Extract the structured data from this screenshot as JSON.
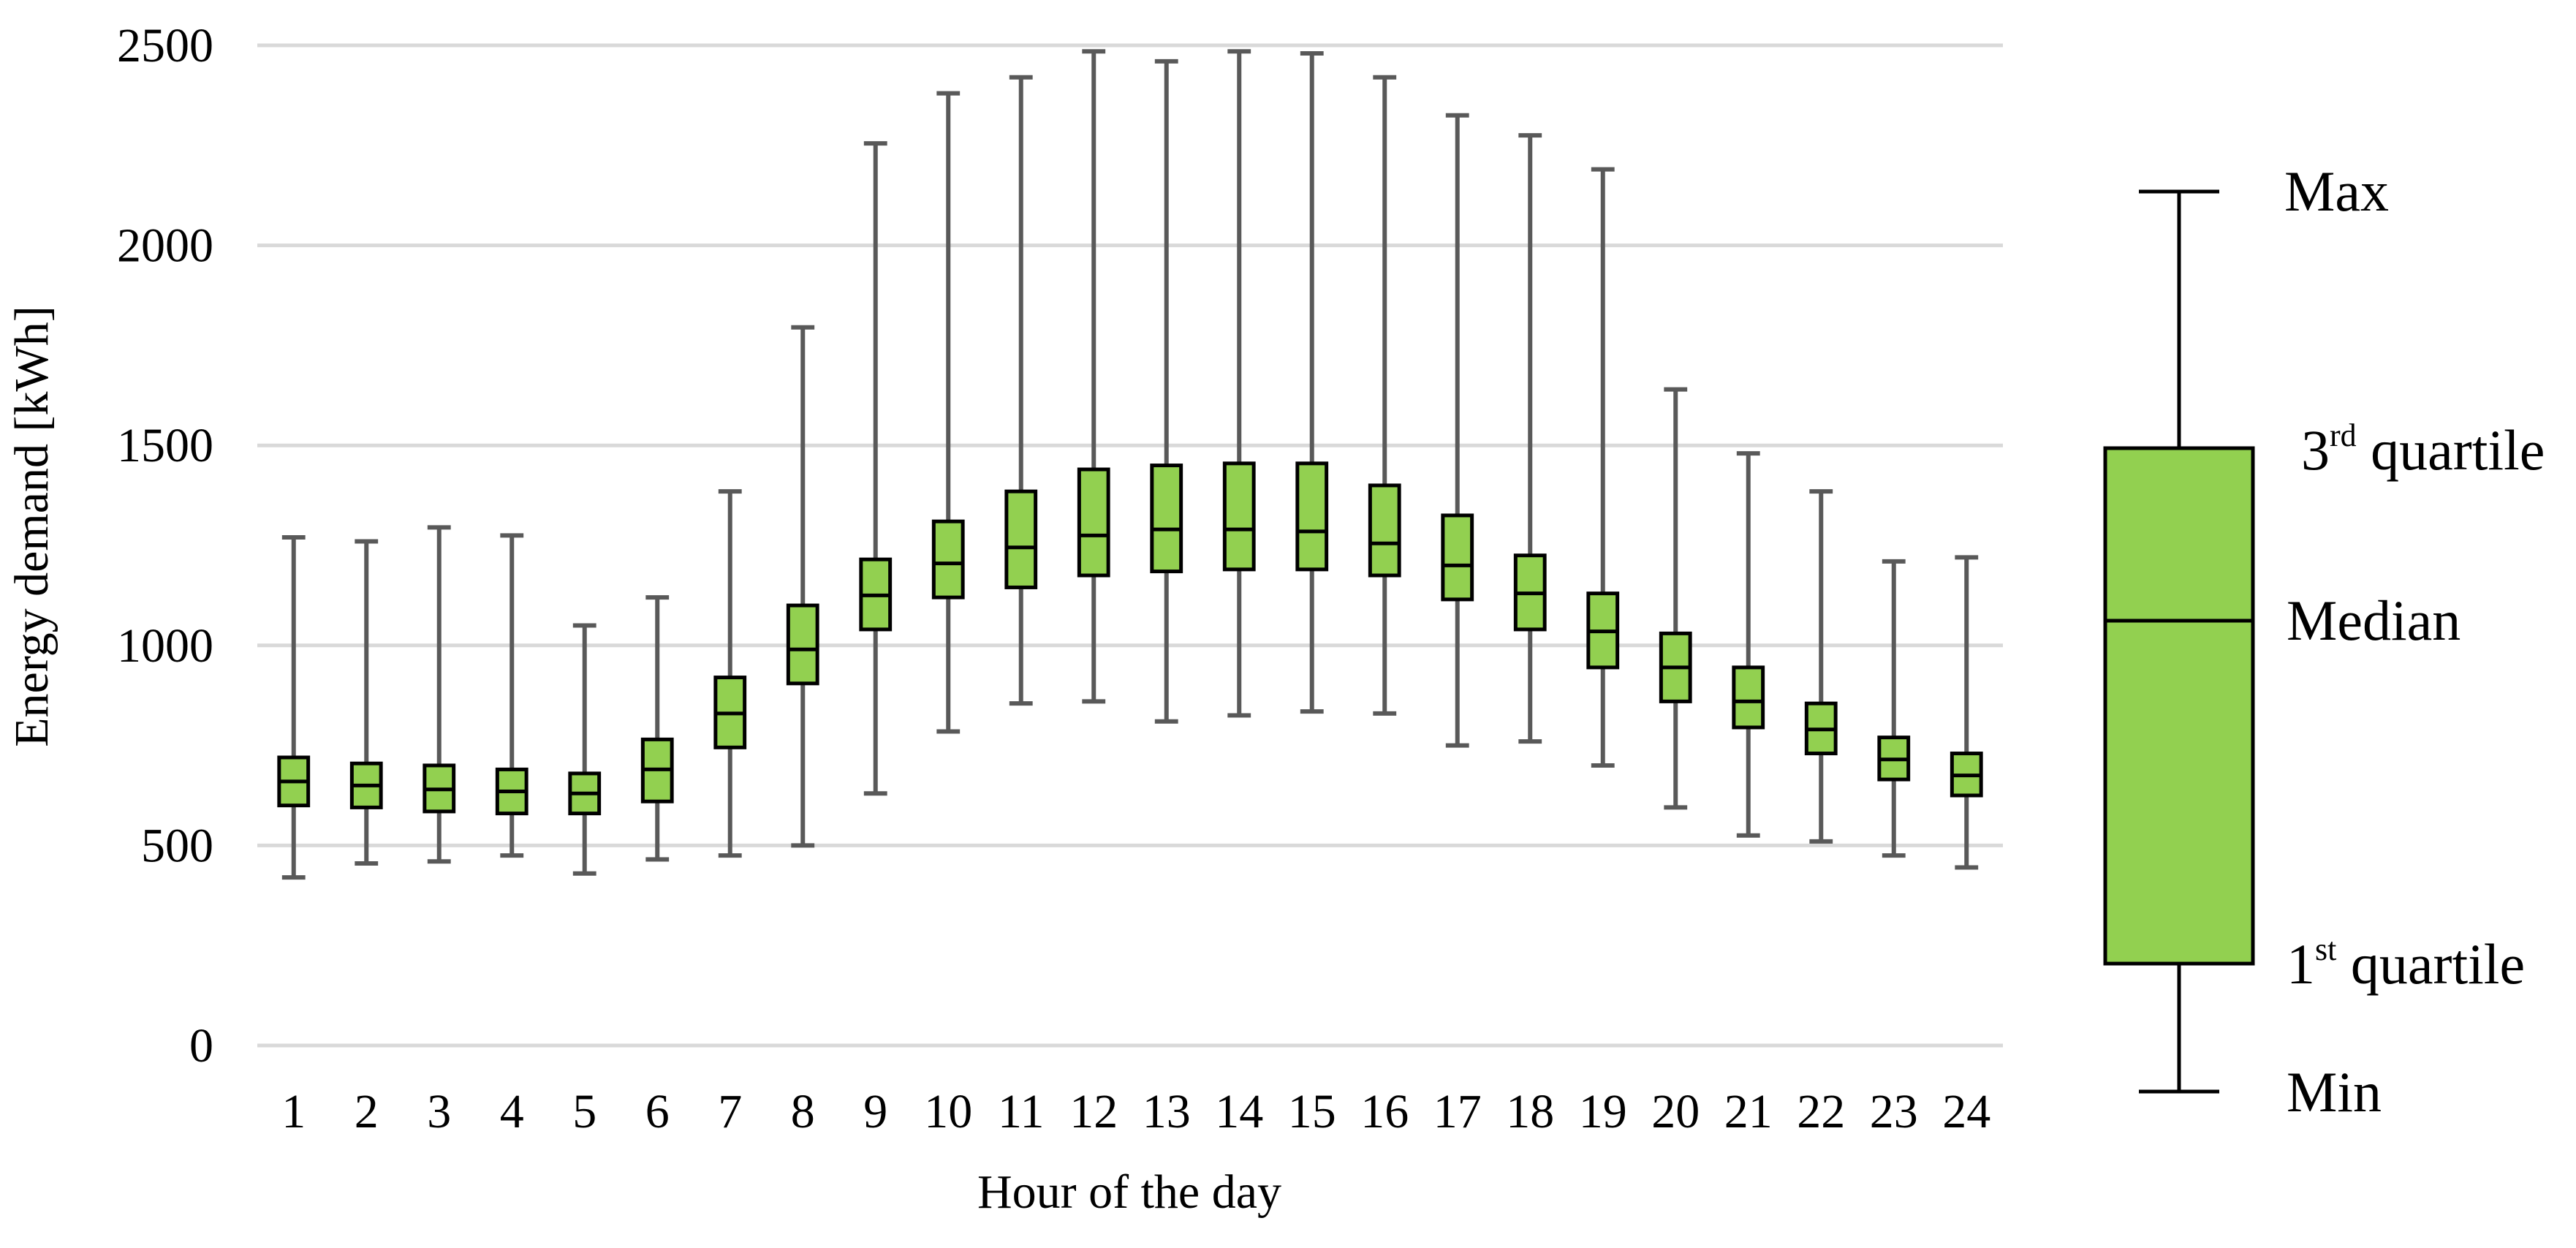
{
  "chart_data": {
    "type": "box",
    "title": "",
    "xlabel": "Hour of the day",
    "ylabel": "Energy demand [kWh]",
    "ylim": [
      0,
      2500
    ],
    "yticks": [
      "0",
      "500",
      "1000",
      "1500",
      "2000",
      "2500"
    ],
    "grid": "horizontal",
    "categories": [
      "1",
      "2",
      "3",
      "4",
      "5",
      "6",
      "7",
      "8",
      "9",
      "10",
      "11",
      "12",
      "13",
      "14",
      "15",
      "16",
      "17",
      "18",
      "19",
      "20",
      "21",
      "22",
      "23",
      "24"
    ],
    "boxes": [
      {
        "min": 420,
        "q1": 600,
        "median": 660,
        "q3": 720,
        "max": 1270
      },
      {
        "min": 455,
        "q1": 595,
        "median": 650,
        "q3": 705,
        "max": 1260
      },
      {
        "min": 460,
        "q1": 585,
        "median": 640,
        "q3": 700,
        "max": 1295
      },
      {
        "min": 475,
        "q1": 580,
        "median": 635,
        "q3": 690,
        "max": 1275
      },
      {
        "min": 430,
        "q1": 580,
        "median": 630,
        "q3": 680,
        "max": 1050
      },
      {
        "min": 465,
        "q1": 610,
        "median": 690,
        "q3": 765,
        "max": 1120
      },
      {
        "min": 475,
        "q1": 745,
        "median": 830,
        "q3": 920,
        "max": 1385
      },
      {
        "min": 500,
        "q1": 905,
        "median": 990,
        "q3": 1100,
        "max": 1795
      },
      {
        "min": 630,
        "q1": 1040,
        "median": 1125,
        "q3": 1215,
        "max": 2255
      },
      {
        "min": 785,
        "q1": 1120,
        "median": 1205,
        "q3": 1310,
        "max": 2380
      },
      {
        "min": 855,
        "q1": 1145,
        "median": 1245,
        "q3": 1385,
        "max": 2420
      },
      {
        "min": 860,
        "q1": 1175,
        "median": 1275,
        "q3": 1440,
        "max": 2485
      },
      {
        "min": 810,
        "q1": 1185,
        "median": 1290,
        "q3": 1450,
        "max": 2460
      },
      {
        "min": 825,
        "q1": 1190,
        "median": 1290,
        "q3": 1455,
        "max": 2485
      },
      {
        "min": 835,
        "q1": 1190,
        "median": 1285,
        "q3": 1455,
        "max": 2480
      },
      {
        "min": 830,
        "q1": 1175,
        "median": 1255,
        "q3": 1400,
        "max": 2420
      },
      {
        "min": 750,
        "q1": 1115,
        "median": 1200,
        "q3": 1325,
        "max": 2325
      },
      {
        "min": 760,
        "q1": 1040,
        "median": 1130,
        "q3": 1225,
        "max": 2275
      },
      {
        "min": 700,
        "q1": 945,
        "median": 1035,
        "q3": 1130,
        "max": 2190
      },
      {
        "min": 595,
        "q1": 860,
        "median": 945,
        "q3": 1030,
        "max": 1640
      },
      {
        "min": 525,
        "q1": 795,
        "median": 860,
        "q3": 945,
        "max": 1480
      },
      {
        "min": 510,
        "q1": 730,
        "median": 790,
        "q3": 855,
        "max": 1385
      },
      {
        "min": 475,
        "q1": 665,
        "median": 715,
        "q3": 770,
        "max": 1210
      },
      {
        "min": 445,
        "q1": 625,
        "median": 675,
        "q3": 730,
        "max": 1220
      }
    ],
    "legend": {
      "max_label": "Max",
      "q3_sup": "rd",
      "q3_num": "3",
      "q3_text": " quartile",
      "median_label": "Median",
      "q1_num": "1",
      "q1_sup": "st",
      "q1_text": " quartile",
      "min_label": "Min",
      "placement": "right"
    },
    "colors": {
      "box_fill": "#92d050",
      "box_stroke": "#000000",
      "whisker": "#595959",
      "grid": "#d9d9d9"
    }
  }
}
